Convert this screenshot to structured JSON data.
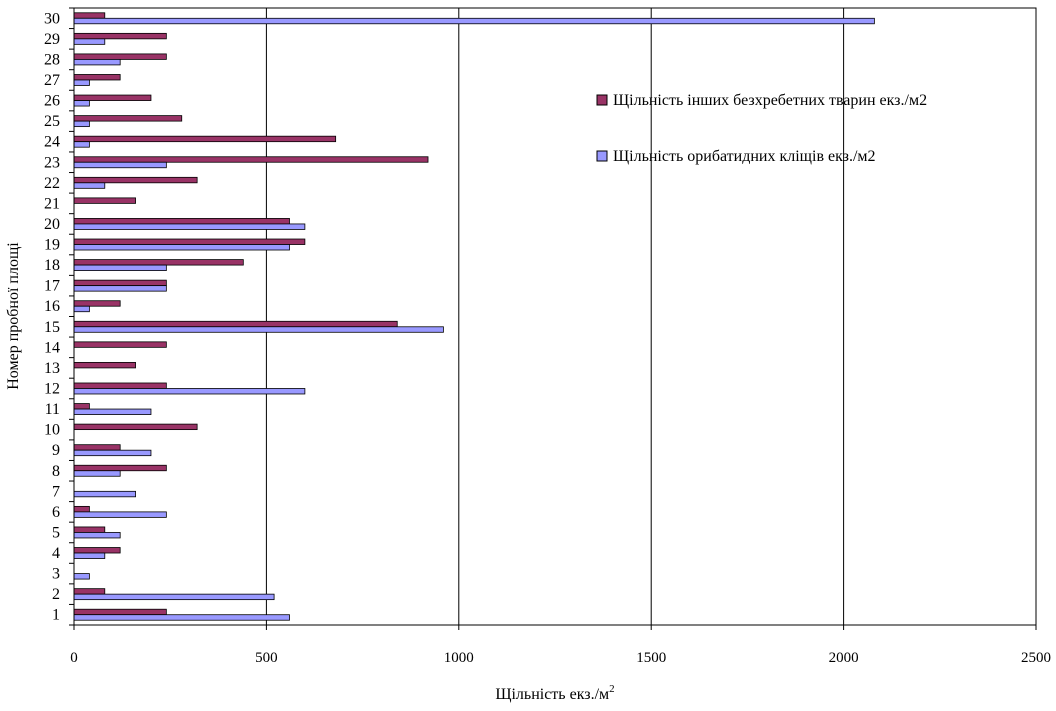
{
  "chart_data": {
    "type": "bar",
    "orientation": "horizontal",
    "title": "",
    "xlabel": "Щільність екз./м",
    "xlabel_superscript": "2",
    "ylabel": "Номер пробної площі",
    "xlim": [
      0,
      2500
    ],
    "xticks": [
      0,
      500,
      1000,
      1500,
      2000,
      2500
    ],
    "grid": "vertical",
    "legend_position": "top-right",
    "categories": [
      "1",
      "2",
      "3",
      "4",
      "5",
      "6",
      "7",
      "8",
      "9",
      "10",
      "11",
      "12",
      "13",
      "14",
      "15",
      "16",
      "17",
      "18",
      "19",
      "20",
      "21",
      "22",
      "23",
      "24",
      "25",
      "26",
      "27",
      "28",
      "29",
      "30"
    ],
    "series": [
      {
        "name": "Щільність інших безхребетних тварин екз./м2",
        "color": "#993366",
        "values": [
          240,
          80,
          0,
          120,
          80,
          40,
          0,
          240,
          120,
          320,
          40,
          240,
          160,
          240,
          840,
          120,
          240,
          440,
          600,
          560,
          160,
          320,
          920,
          680,
          280,
          200,
          120,
          240,
          240,
          80
        ]
      },
      {
        "name": "Щільність орибатидних кліщів екз./м2",
        "color": "#9999FF",
        "values": [
          560,
          520,
          40,
          80,
          120,
          240,
          160,
          120,
          200,
          0,
          200,
          600,
          0,
          0,
          960,
          40,
          240,
          240,
          560,
          600,
          0,
          80,
          240,
          40,
          40,
          40,
          40,
          120,
          80,
          2080
        ]
      }
    ]
  }
}
